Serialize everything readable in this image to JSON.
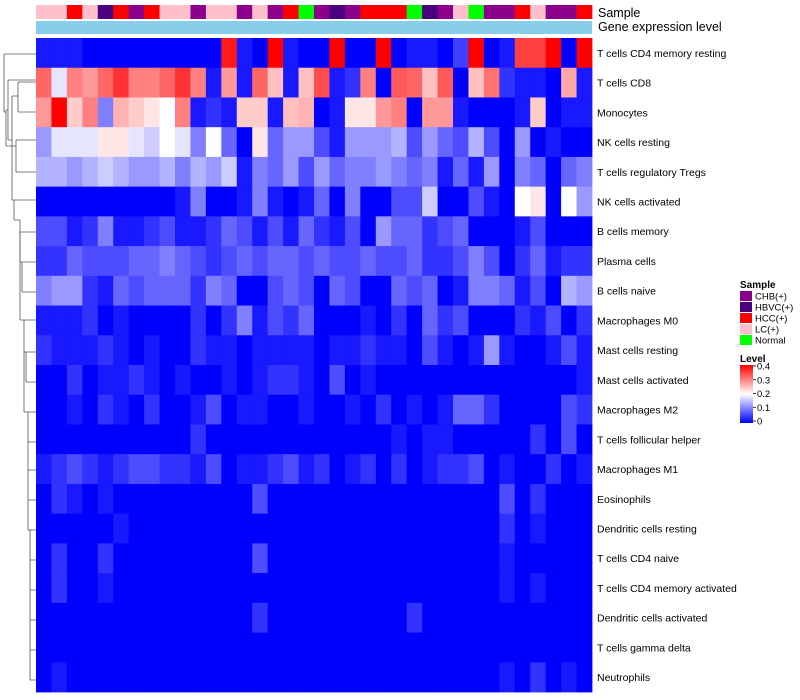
{
  "chart_data": {
    "type": "heatmap",
    "annotation_tracks": [
      {
        "name": "Sample"
      },
      {
        "name": "Gene expression level"
      }
    ],
    "sample_legend": {
      "title": "Sample",
      "entries": [
        {
          "label": "CHB(+)",
          "color": "#8b008b"
        },
        {
          "label": "HBVC(+)",
          "color": "#4b0082"
        },
        {
          "label": "HCC(+)",
          "color": "#ff0000"
        },
        {
          "label": "LC(+)",
          "color": "#ffc0cb"
        },
        {
          "label": "Normal",
          "color": "#00ff00"
        }
      ]
    },
    "sample_groups": [
      "LC",
      "LC",
      "HCC",
      "LC",
      "HBVC",
      "HCC",
      "CHB",
      "HCC",
      "LC",
      "LC",
      "CHB",
      "LC",
      "LC",
      "CHB",
      "LC",
      "CHB",
      "HCC",
      "Normal",
      "CHB",
      "HBVC",
      "CHB",
      "HCC",
      "HCC",
      "HCC",
      "Normal",
      "HBVC",
      "CHB",
      "LC",
      "Normal",
      "CHB",
      "CHB",
      "HCC",
      "LC",
      "CHB",
      "CHB",
      "HCC"
    ],
    "gene_expression_level_color": "#87ceeb",
    "color_scale": {
      "title": "Level",
      "min": 0,
      "max": 0.4,
      "ticks": [
        {
          "label": "0.4",
          "value": 0.4
        },
        {
          "label": "0.3",
          "value": 0.3
        },
        {
          "label": "0.2",
          "value": 0.2
        },
        {
          "label": "0.1",
          "value": 0.1
        },
        {
          "label": "0",
          "value": 0
        }
      ],
      "colors": [
        "#0000ff",
        "#ffffff",
        "#ff0000"
      ]
    },
    "rows": [
      "T cells CD4 memory resting",
      "T cells CD8",
      "Monocytes",
      "NK cells resting",
      "T cells regulatory  Tregs",
      "NK cells activated",
      "B cells memory",
      "Plasma cells",
      "B cells naive",
      "Macrophages M0",
      "Mast cells resting",
      "Mast cells activated",
      "Macrophages M2",
      "T cells follicular helper",
      "Macrophages M1",
      "Eosinophils",
      "Dendritic cells resting",
      "T cells CD4 naive",
      "T cells CD4 memory activated",
      "Dendritic cells activated",
      "T cells gamma delta",
      "Neutrophils"
    ],
    "values": [
      [
        0.02,
        0.02,
        0.02,
        0.0,
        0.0,
        0.0,
        0.0,
        0.0,
        0.0,
        0.0,
        0.0,
        0.0,
        0.38,
        0.02,
        0.0,
        0.4,
        0.02,
        0.0,
        0.0,
        0.4,
        0.0,
        0.0,
        0.4,
        0.0,
        0.02,
        0.02,
        0.0,
        0.05,
        0.4,
        0.0,
        0.02,
        0.35,
        0.35,
        0.4,
        0.0,
        0.4
      ],
      [
        0.32,
        0.18,
        0.3,
        0.28,
        0.32,
        0.36,
        0.3,
        0.3,
        0.32,
        0.36,
        0.3,
        0.02,
        0.28,
        0.02,
        0.32,
        0.25,
        0.02,
        0.25,
        0.34,
        0.02,
        0.04,
        0.3,
        0.0,
        0.33,
        0.32,
        0.25,
        0.33,
        0.0,
        0.25,
        0.31,
        0.04,
        0.02,
        0.02,
        0.0,
        0.27,
        0.02
      ],
      [
        0.28,
        0.4,
        0.24,
        0.3,
        0.1,
        0.26,
        0.24,
        0.22,
        0.2,
        0.3,
        0.02,
        0.04,
        0.02,
        0.24,
        0.24,
        0.02,
        0.25,
        0.26,
        0.0,
        0.02,
        0.22,
        0.22,
        0.28,
        0.3,
        0.0,
        0.28,
        0.28,
        0.02,
        0.0,
        0.0,
        0.0,
        0.02,
        0.24,
        0.0,
        0.02,
        0.02
      ],
      [
        0.12,
        0.18,
        0.18,
        0.18,
        0.22,
        0.22,
        0.18,
        0.16,
        0.2,
        0.18,
        0.1,
        0.2,
        0.08,
        0.0,
        0.22,
        0.08,
        0.12,
        0.12,
        0.06,
        0.02,
        0.12,
        0.12,
        0.12,
        0.14,
        0.06,
        0.12,
        0.08,
        0.06,
        0.14,
        0.06,
        0.0,
        0.12,
        0.0,
        0.02,
        0.0,
        0.0
      ],
      [
        0.14,
        0.14,
        0.12,
        0.14,
        0.16,
        0.14,
        0.12,
        0.12,
        0.14,
        0.1,
        0.14,
        0.12,
        0.16,
        0.02,
        0.1,
        0.08,
        0.12,
        0.06,
        0.12,
        0.08,
        0.1,
        0.1,
        0.12,
        0.1,
        0.08,
        0.1,
        0.02,
        0.08,
        0.02,
        0.12,
        0.0,
        0.1,
        0.08,
        0.0,
        0.08,
        0.1
      ],
      [
        0.0,
        0.0,
        0.0,
        0.0,
        0.0,
        0.0,
        0.0,
        0.0,
        0.0,
        0.02,
        0.1,
        0.0,
        0.0,
        0.02,
        0.1,
        0.02,
        0.0,
        0.02,
        0.08,
        0.0,
        0.1,
        0.0,
        0.0,
        0.06,
        0.06,
        0.16,
        0.0,
        0.0,
        0.06,
        0.02,
        0.0,
        0.2,
        0.22,
        0.0,
        0.2,
        0.12
      ],
      [
        0.06,
        0.06,
        0.02,
        0.04,
        0.1,
        0.02,
        0.02,
        0.04,
        0.06,
        0.02,
        0.02,
        0.04,
        0.08,
        0.06,
        0.02,
        0.06,
        0.02,
        0.08,
        0.04,
        0.02,
        0.06,
        0.0,
        0.12,
        0.08,
        0.08,
        0.04,
        0.06,
        0.08,
        0.0,
        0.0,
        0.0,
        0.02,
        0.06,
        0.0,
        0.0,
        0.0
      ],
      [
        0.04,
        0.04,
        0.08,
        0.06,
        0.06,
        0.06,
        0.08,
        0.08,
        0.1,
        0.08,
        0.06,
        0.04,
        0.06,
        0.08,
        0.06,
        0.08,
        0.08,
        0.06,
        0.08,
        0.06,
        0.06,
        0.08,
        0.06,
        0.06,
        0.08,
        0.04,
        0.04,
        0.06,
        0.1,
        0.06,
        0.0,
        0.04,
        0.08,
        0.02,
        0.04,
        0.04
      ],
      [
        0.1,
        0.12,
        0.12,
        0.04,
        0.02,
        0.08,
        0.06,
        0.08,
        0.08,
        0.08,
        0.04,
        0.1,
        0.08,
        0.0,
        0.0,
        0.06,
        0.08,
        0.06,
        0.0,
        0.08,
        0.06,
        0.0,
        0.0,
        0.08,
        0.06,
        0.08,
        0.0,
        0.02,
        0.1,
        0.1,
        0.08,
        0.02,
        0.06,
        0.0,
        0.14,
        0.12
      ],
      [
        0.02,
        0.02,
        0.02,
        0.04,
        0.0,
        0.02,
        0.0,
        0.0,
        0.0,
        0.0,
        0.04,
        0.0,
        0.04,
        0.1,
        0.02,
        0.06,
        0.04,
        0.08,
        0.0,
        0.0,
        0.0,
        0.02,
        0.0,
        0.04,
        0.0,
        0.08,
        0.04,
        0.06,
        0.0,
        0.0,
        0.0,
        0.04,
        0.02,
        0.06,
        0.0,
        0.04
      ],
      [
        0.04,
        0.02,
        0.02,
        0.02,
        0.04,
        0.02,
        0.0,
        0.02,
        0.0,
        0.0,
        0.04,
        0.02,
        0.02,
        0.0,
        0.02,
        0.02,
        0.02,
        0.02,
        0.0,
        0.02,
        0.02,
        0.04,
        0.02,
        0.02,
        0.0,
        0.06,
        0.02,
        0.0,
        0.02,
        0.12,
        0.02,
        0.0,
        0.0,
        0.02,
        0.06,
        0.02
      ],
      [
        0.0,
        0.0,
        0.04,
        0.0,
        0.02,
        0.02,
        0.04,
        0.02,
        0.0,
        0.02,
        0.0,
        0.0,
        0.02,
        0.0,
        0.02,
        0.04,
        0.04,
        0.02,
        0.0,
        0.06,
        0.0,
        0.02,
        0.0,
        0.0,
        0.0,
        0.0,
        0.0,
        0.0,
        0.0,
        0.0,
        0.0,
        0.0,
        0.0,
        0.0,
        0.0,
        0.02
      ],
      [
        0.0,
        0.0,
        0.02,
        0.0,
        0.04,
        0.02,
        0.0,
        0.04,
        0.0,
        0.0,
        0.02,
        0.06,
        0.0,
        0.02,
        0.02,
        0.0,
        0.0,
        0.02,
        0.0,
        0.0,
        0.02,
        0.0,
        0.04,
        0.0,
        0.02,
        0.0,
        0.02,
        0.08,
        0.08,
        0.04,
        0.0,
        0.0,
        0.0,
        0.0,
        0.06,
        0.04
      ],
      [
        0.0,
        0.0,
        0.0,
        0.0,
        0.0,
        0.0,
        0.0,
        0.0,
        0.0,
        0.0,
        0.04,
        0.0,
        0.0,
        0.0,
        0.0,
        0.0,
        0.0,
        0.0,
        0.0,
        0.0,
        0.0,
        0.0,
        0.0,
        0.02,
        0.0,
        0.02,
        0.02,
        0.0,
        0.0,
        0.0,
        0.0,
        0.0,
        0.04,
        0.0,
        0.06,
        0.0
      ],
      [
        0.02,
        0.04,
        0.06,
        0.04,
        0.02,
        0.04,
        0.06,
        0.06,
        0.04,
        0.04,
        0.02,
        0.06,
        0.0,
        0.02,
        0.02,
        0.04,
        0.06,
        0.02,
        0.04,
        0.0,
        0.02,
        0.04,
        0.0,
        0.04,
        0.0,
        0.02,
        0.04,
        0.04,
        0.06,
        0.0,
        0.02,
        0.0,
        0.0,
        0.04,
        0.0,
        0.02
      ],
      [
        0.0,
        0.04,
        0.02,
        0.0,
        0.02,
        0.0,
        0.0,
        0.0,
        0.0,
        0.0,
        0.0,
        0.0,
        0.0,
        0.0,
        0.06,
        0.0,
        0.0,
        0.0,
        0.0,
        0.0,
        0.0,
        0.0,
        0.0,
        0.0,
        0.0,
        0.0,
        0.0,
        0.0,
        0.0,
        0.0,
        0.06,
        0.0,
        0.04,
        0.0,
        0.0,
        0.0
      ],
      [
        0.0,
        0.0,
        0.0,
        0.0,
        0.0,
        0.02,
        0.0,
        0.0,
        0.0,
        0.0,
        0.0,
        0.0,
        0.0,
        0.0,
        0.0,
        0.0,
        0.0,
        0.0,
        0.0,
        0.0,
        0.0,
        0.0,
        0.0,
        0.0,
        0.0,
        0.0,
        0.0,
        0.0,
        0.0,
        0.0,
        0.04,
        0.0,
        0.02,
        0.0,
        0.0,
        0.0
      ],
      [
        0.0,
        0.04,
        0.0,
        0.0,
        0.04,
        0.0,
        0.0,
        0.0,
        0.0,
        0.0,
        0.0,
        0.0,
        0.0,
        0.0,
        0.06,
        0.0,
        0.0,
        0.0,
        0.0,
        0.0,
        0.0,
        0.0,
        0.0,
        0.0,
        0.0,
        0.0,
        0.0,
        0.0,
        0.0,
        0.0,
        0.02,
        0.0,
        0.0,
        0.0,
        0.0,
        0.0
      ],
      [
        0.0,
        0.04,
        0.0,
        0.0,
        0.02,
        0.0,
        0.0,
        0.0,
        0.0,
        0.0,
        0.0,
        0.0,
        0.0,
        0.0,
        0.0,
        0.0,
        0.0,
        0.0,
        0.0,
        0.0,
        0.0,
        0.0,
        0.0,
        0.0,
        0.0,
        0.0,
        0.0,
        0.0,
        0.0,
        0.0,
        0.02,
        0.0,
        0.02,
        0.0,
        0.0,
        0.0
      ],
      [
        0.0,
        0.0,
        0.0,
        0.0,
        0.0,
        0.0,
        0.0,
        0.0,
        0.0,
        0.0,
        0.0,
        0.0,
        0.0,
        0.0,
        0.04,
        0.0,
        0.0,
        0.0,
        0.0,
        0.0,
        0.0,
        0.0,
        0.0,
        0.0,
        0.04,
        0.0,
        0.0,
        0.0,
        0.0,
        0.0,
        0.0,
        0.0,
        0.0,
        0.0,
        0.0,
        0.0
      ],
      [
        0.0,
        0.0,
        0.0,
        0.0,
        0.0,
        0.0,
        0.0,
        0.0,
        0.0,
        0.0,
        0.0,
        0.0,
        0.0,
        0.0,
        0.0,
        0.0,
        0.0,
        0.0,
        0.0,
        0.0,
        0.0,
        0.0,
        0.0,
        0.0,
        0.0,
        0.0,
        0.0,
        0.0,
        0.0,
        0.0,
        0.0,
        0.0,
        0.0,
        0.0,
        0.0,
        0.0
      ],
      [
        0.0,
        0.02,
        0.0,
        0.0,
        0.0,
        0.0,
        0.0,
        0.0,
        0.0,
        0.0,
        0.0,
        0.0,
        0.0,
        0.0,
        0.0,
        0.0,
        0.0,
        0.0,
        0.0,
        0.0,
        0.0,
        0.0,
        0.0,
        0.0,
        0.0,
        0.0,
        0.0,
        0.0,
        0.0,
        0.0,
        0.02,
        0.0,
        0.04,
        0.0,
        0.02,
        0.0
      ]
    ]
  }
}
